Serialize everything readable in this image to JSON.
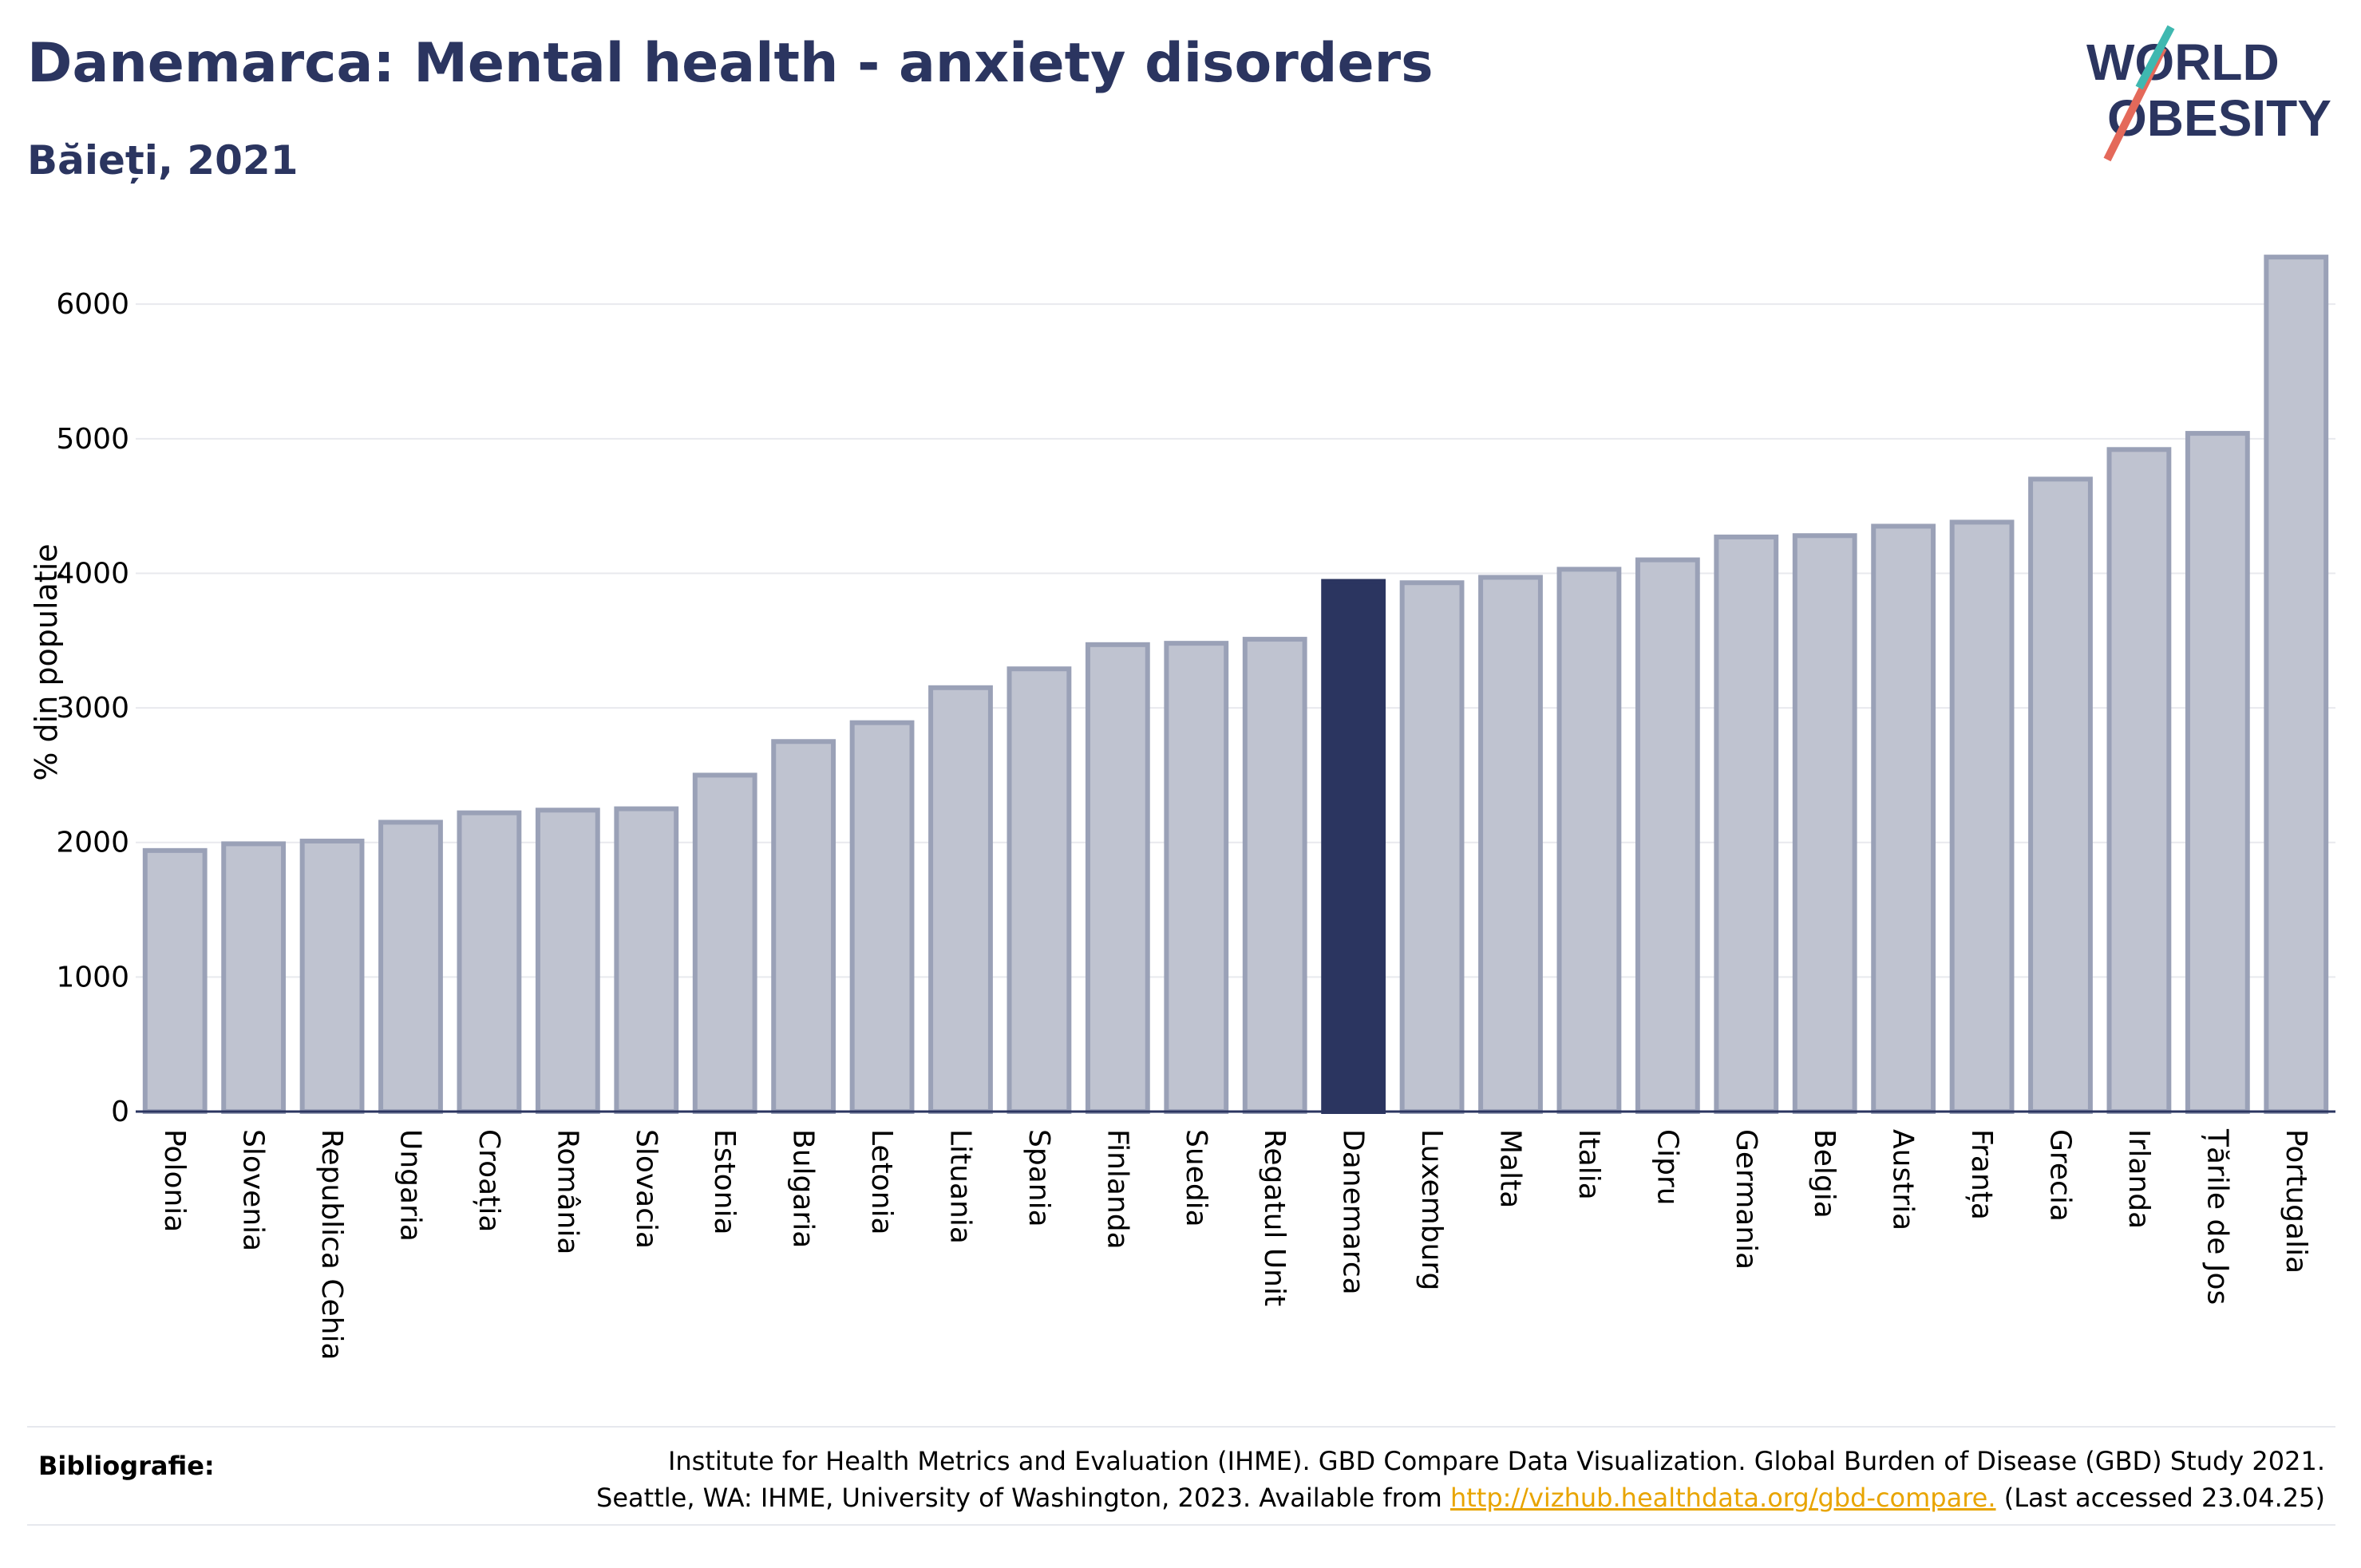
{
  "header": {
    "title": "Danemarca: Mental health - anxiety disorders",
    "subtitle": "Băieți, 2021"
  },
  "logo": {
    "line1": "WORLD",
    "line2": "OBESITY"
  },
  "bibliography": {
    "label": "Bibliografie:",
    "line1": "Institute for Health Metrics and Evaluation (IHME). GBD Compare Data Visualization. Global Burden of Disease (GBD) Study 2021.",
    "line2_prefix": "Seattle, WA: IHME, University of Washington, 2023. Available from",
    "link": "http://vizhub.healthdata.org/gbd-compare.",
    "line2_suffix": "(Last accessed 23.04.25)"
  },
  "colors": {
    "highlight": "#2b3560",
    "bar_fill": "#bfc3d0",
    "bar_stroke": "#9aa1b7",
    "grid": "#e8e9ee"
  },
  "chart_data": {
    "type": "bar",
    "ylabel": "% din populație",
    "ylim": [
      0,
      6600
    ],
    "yticks": [
      0,
      1000,
      2000,
      3000,
      4000,
      5000,
      6000
    ],
    "grid": true,
    "highlight": "Danemarca",
    "categories": [
      "Polonia",
      "Slovenia",
      "Republica Cehia",
      "Ungaria",
      "Croația",
      "România",
      "Slovacia",
      "Estonia",
      "Bulgaria",
      "Letonia",
      "Lituania",
      "Spania",
      "Finlanda",
      "Suedia",
      "Regatul Unit",
      "Danemarca",
      "Luxemburg",
      "Malta",
      "Italia",
      "Cipru",
      "Germania",
      "Belgia",
      "Austria",
      "Franța",
      "Grecia",
      "Irlanda",
      "Țările de Jos",
      "Portugalia"
    ],
    "values": [
      1940,
      1990,
      2010,
      2150,
      2220,
      2240,
      2250,
      2500,
      2750,
      2890,
      3150,
      3290,
      3470,
      3480,
      3510,
      3940,
      3930,
      3970,
      4030,
      4100,
      4270,
      4280,
      4350,
      4380,
      4700,
      4920,
      5040,
      6350
    ]
  }
}
